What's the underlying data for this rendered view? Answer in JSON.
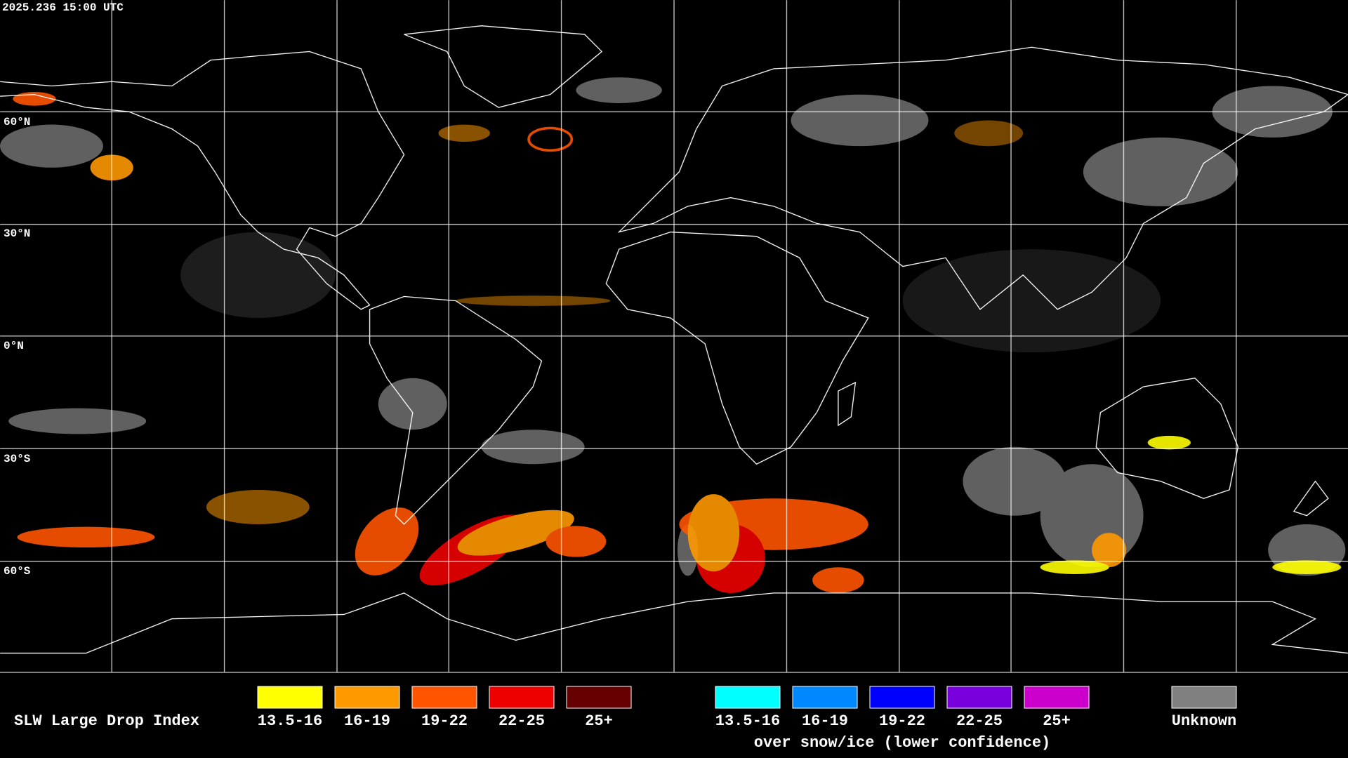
{
  "header": {
    "timestamp": "2025.236 15:00 UTC"
  },
  "map": {
    "lat_labels": [
      "60°N",
      "30°N",
      "0°N",
      "30°S",
      "60°S"
    ]
  },
  "legend": {
    "title": "SLW Large Drop Index",
    "groups": [
      {
        "items": [
          {
            "label": "13.5-16",
            "color": "#ffff00"
          },
          {
            "label": "16-19",
            "color": "#ff9900"
          },
          {
            "label": "19-22",
            "color": "#ff5500"
          },
          {
            "label": "22-25",
            "color": "#ee0000"
          },
          {
            "label": "25+",
            "color": "#660000"
          }
        ]
      },
      {
        "items": [
          {
            "label": "13.5-16",
            "color": "#00ffff"
          },
          {
            "label": "16-19",
            "color": "#0088ff"
          },
          {
            "label": "19-22",
            "color": "#0000ff"
          },
          {
            "label": "22-25",
            "color": "#7700dd"
          },
          {
            "label": "25+",
            "color": "#cc00cc"
          }
        ],
        "note": "over snow/ice (lower confidence)"
      }
    ],
    "unknown": {
      "label": "Unknown",
      "color": "#808080"
    }
  }
}
